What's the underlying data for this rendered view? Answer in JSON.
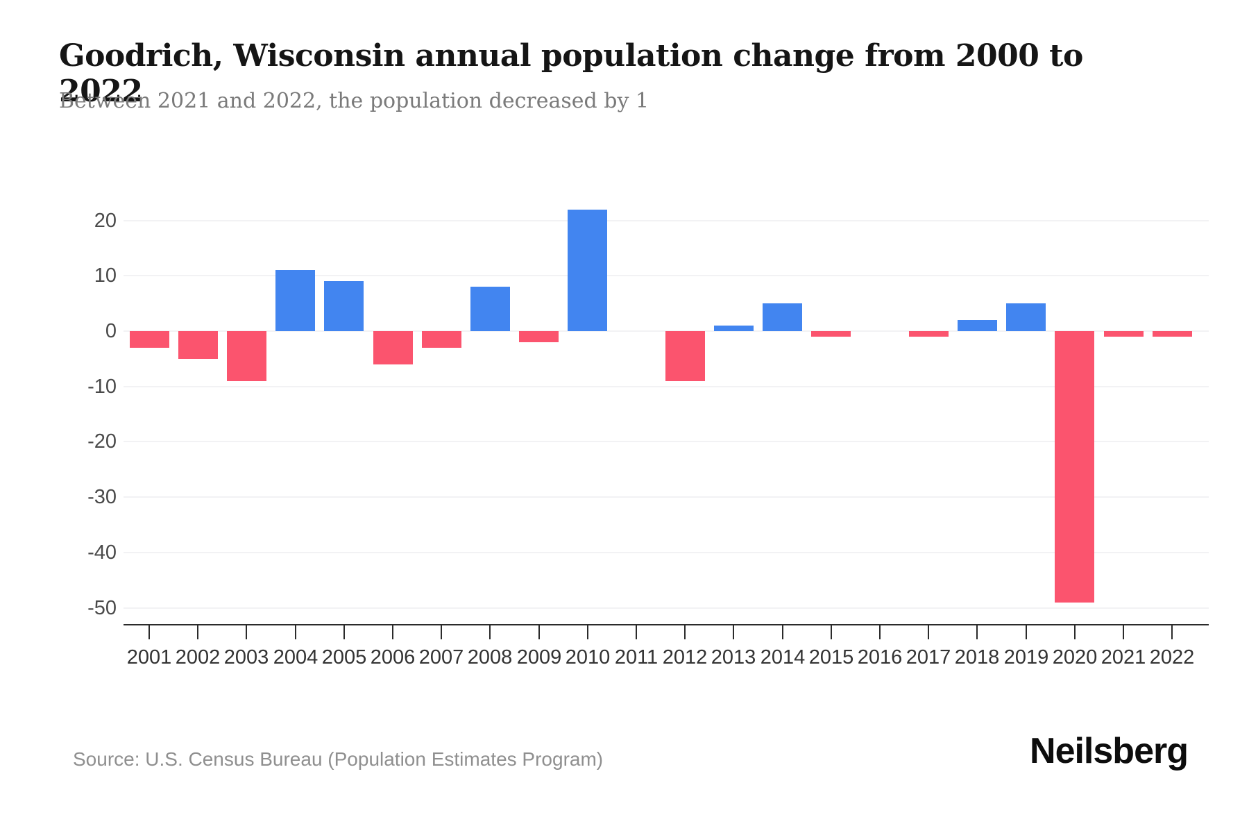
{
  "header": {
    "title": "Goodrich, Wisconsin annual population change from 2000 to 2022",
    "subtitle": "Between 2021 and 2022, the population decreased by 1"
  },
  "footer": {
    "source": "Source: U.S. Census Bureau (Population Estimates Program)",
    "brand": "Neilsberg"
  },
  "chart_data": {
    "type": "bar",
    "title": "Goodrich, Wisconsin annual population change from 2000 to 2022",
    "subtitle": "Between 2021 and 2022, the population decreased by 1",
    "categories": [
      "2001",
      "2002",
      "2003",
      "2004",
      "2005",
      "2006",
      "2007",
      "2008",
      "2009",
      "2010",
      "2011",
      "2012",
      "2013",
      "2014",
      "2015",
      "2016",
      "2017",
      "2018",
      "2019",
      "2020",
      "2021",
      "2022"
    ],
    "values": [
      -3,
      -5,
      -9,
      11,
      9,
      -6,
      -3,
      8,
      -2,
      22,
      0,
      -9,
      1,
      5,
      -1,
      0,
      -1,
      2,
      5,
      -49,
      -1,
      -1
    ],
    "xlabel": "",
    "ylabel": "",
    "yticks": [
      20,
      10,
      0,
      -10,
      -20,
      -30,
      -40,
      -50
    ],
    "ylim": [
      -53,
      25
    ],
    "grid": "horizontal",
    "legend_position": "none",
    "colors": {
      "positive_bar": "#4285f0",
      "negative_bar": "#fb546e",
      "gridline": "#f2f2f4",
      "axis_line": "#2b2b2b",
      "y_tick_label": "#4a4a4a",
      "x_tick_label": "#333333"
    }
  }
}
